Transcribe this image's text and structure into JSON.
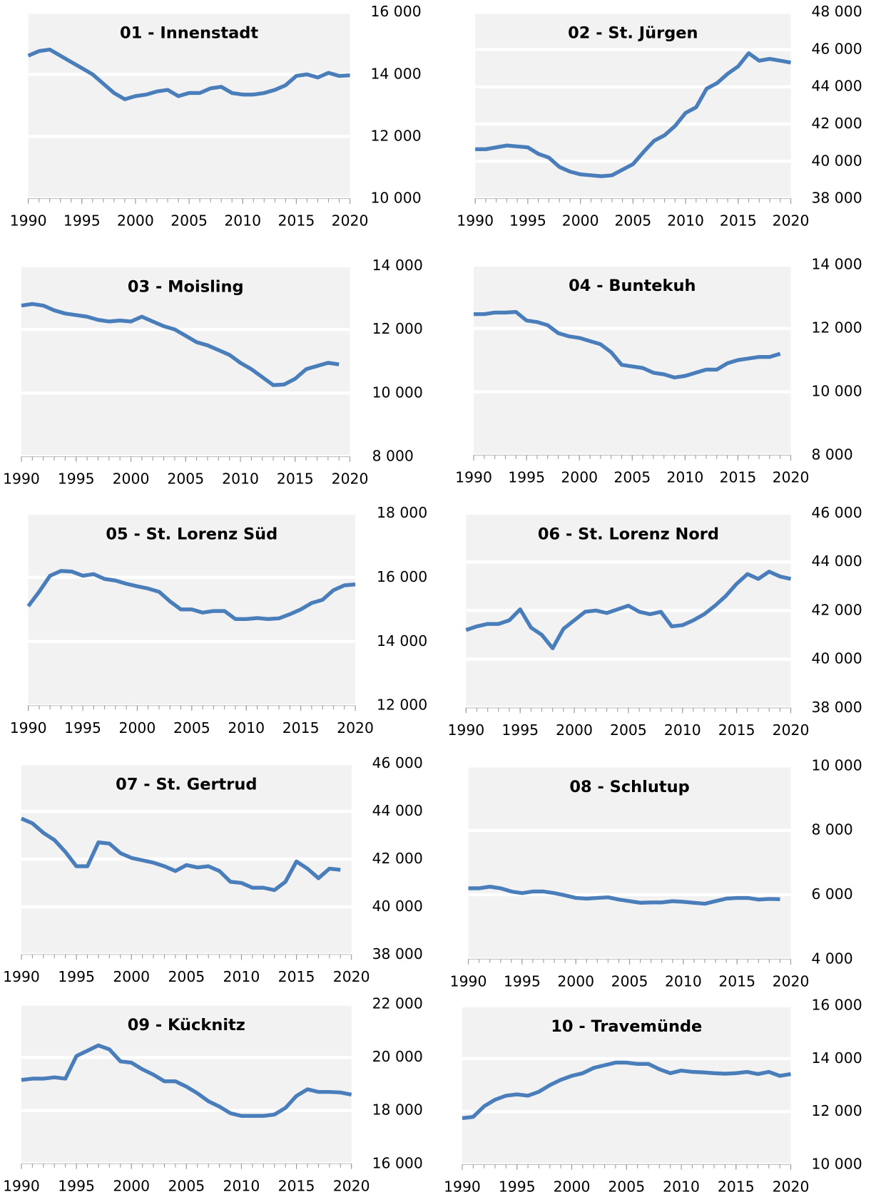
{
  "chart_data": [
    {
      "type": "line",
      "title": "01 - Innenstadt",
      "color": "#4a7ebb",
      "x": [
        1990,
        1991,
        1992,
        1993,
        1994,
        1995,
        1996,
        1997,
        1998,
        1999,
        2000,
        2001,
        2002,
        2003,
        2004,
        2005,
        2006,
        2007,
        2008,
        2009,
        2010,
        2011,
        2012,
        2013,
        2014,
        2015,
        2016,
        2017,
        2018,
        2019,
        2020
      ],
      "values": [
        14600,
        14750,
        14800,
        14600,
        14400,
        14200,
        14000,
        13700,
        13400,
        13200,
        13300,
        13350,
        13450,
        13500,
        13300,
        13400,
        13400,
        13550,
        13600,
        13400,
        13350,
        13350,
        13400,
        13500,
        13650,
        13950,
        14000,
        13900,
        14050,
        13950,
        13970
      ],
      "xlim": [
        1990,
        2020
      ],
      "xticks": [
        1990,
        1995,
        2000,
        2005,
        2010,
        2015,
        2020
      ],
      "ylim": [
        10000,
        16000
      ],
      "yticks": [
        {
          "value": 10000,
          "label": "10 000"
        },
        {
          "value": 12000,
          "label": "12 000"
        },
        {
          "value": 14000,
          "label": "14 000"
        },
        {
          "value": 16000,
          "label": "16 000"
        }
      ],
      "grid": true
    },
    {
      "type": "line",
      "title": "02 - St. Jürgen",
      "color": "#4a7ebb",
      "x": [
        1990,
        1991,
        1992,
        1993,
        1994,
        1995,
        1996,
        1997,
        1998,
        1999,
        2000,
        2001,
        2002,
        2003,
        2004,
        2005,
        2006,
        2007,
        2008,
        2009,
        2010,
        2011,
        2012,
        2013,
        2014,
        2015,
        2016,
        2017,
        2018,
        2019,
        2020
      ],
      "values": [
        40650,
        40650,
        40750,
        40850,
        40800,
        40750,
        40400,
        40200,
        39700,
        39450,
        39300,
        39250,
        39200,
        39250,
        39550,
        39850,
        40500,
        41100,
        41400,
        41900,
        42600,
        42900,
        43900,
        44200,
        44700,
        45100,
        45800,
        45400,
        45500,
        45400,
        45300
      ],
      "xlim": [
        1990,
        2020
      ],
      "xticks": [
        1990,
        1995,
        2000,
        2005,
        2010,
        2015,
        2020
      ],
      "ylim": [
        38000,
        48000
      ],
      "yticks": [
        {
          "value": 38000,
          "label": "38 000"
        },
        {
          "value": 40000,
          "label": "40 000"
        },
        {
          "value": 42000,
          "label": "42 000"
        },
        {
          "value": 44000,
          "label": "44 000"
        },
        {
          "value": 46000,
          "label": "46 000"
        },
        {
          "value": 48000,
          "label": "48 000"
        }
      ],
      "grid": true
    },
    {
      "type": "line",
      "title": "03 - Moisling",
      "color": "#4a7ebb",
      "x": [
        1990,
        1991,
        1992,
        1993,
        1994,
        1995,
        1996,
        1997,
        1998,
        1999,
        2000,
        2001,
        2002,
        2003,
        2004,
        2005,
        2006,
        2007,
        2008,
        2009,
        2010,
        2011,
        2012,
        2013,
        2014,
        2015,
        2016,
        2017,
        2018,
        2019
      ],
      "values": [
        12750,
        12800,
        12750,
        12600,
        12500,
        12450,
        12400,
        12300,
        12250,
        12280,
        12250,
        12400,
        12250,
        12100,
        12000,
        11800,
        11600,
        11500,
        11350,
        11200,
        10950,
        10750,
        10500,
        10250,
        10270,
        10450,
        10750,
        10850,
        10950,
        10900
      ],
      "xlim": [
        1990,
        2020
      ],
      "xticks": [
        1990,
        1995,
        2000,
        2005,
        2010,
        2015,
        2020
      ],
      "ylim": [
        8000,
        14000
      ],
      "yticks": [
        {
          "value": 8000,
          "label": "8 000"
        },
        {
          "value": 10000,
          "label": "10 000"
        },
        {
          "value": 12000,
          "label": "12 000"
        },
        {
          "value": 14000,
          "label": "14 000"
        }
      ],
      "grid": true
    },
    {
      "type": "line",
      "title": "04 - Buntekuh",
      "color": "#4a7ebb",
      "x": [
        1990,
        1991,
        1992,
        1993,
        1994,
        1995,
        1996,
        1997,
        1998,
        1999,
        2000,
        2001,
        2002,
        2003,
        2004,
        2005,
        2006,
        2007,
        2008,
        2009,
        2010,
        2011,
        2012,
        2013,
        2014,
        2015,
        2016,
        2017,
        2018,
        2019
      ],
      "values": [
        12450,
        12450,
        12500,
        12500,
        12520,
        12250,
        12200,
        12100,
        11850,
        11750,
        11700,
        11600,
        11500,
        11250,
        10850,
        10800,
        10750,
        10600,
        10550,
        10450,
        10500,
        10600,
        10700,
        10700,
        10900,
        11000,
        11050,
        11100,
        11100,
        11200
      ],
      "xlim": [
        1990,
        2020
      ],
      "xticks": [
        1990,
        1995,
        2000,
        2005,
        2010,
        2015,
        2020
      ],
      "ylim": [
        8000,
        14000
      ],
      "yticks": [
        {
          "value": 8000,
          "label": "8 000"
        },
        {
          "value": 10000,
          "label": "10 000"
        },
        {
          "value": 12000,
          "label": "12 000"
        },
        {
          "value": 14000,
          "label": "14 000"
        }
      ],
      "grid": true
    },
    {
      "type": "line",
      "title": "05 - St. Lorenz Süd",
      "color": "#4a7ebb",
      "x": [
        1990,
        1991,
        1992,
        1993,
        1994,
        1995,
        1996,
        1997,
        1998,
        1999,
        2000,
        2001,
        2002,
        2003,
        2004,
        2005,
        2006,
        2007,
        2008,
        2009,
        2010,
        2011,
        2012,
        2013,
        2014,
        2015,
        2016,
        2017,
        2018,
        2019,
        2020
      ],
      "values": [
        15100,
        15550,
        16050,
        16200,
        16180,
        16050,
        16100,
        15950,
        15900,
        15800,
        15720,
        15650,
        15550,
        15250,
        15000,
        15000,
        14900,
        14950,
        14950,
        14700,
        14700,
        14730,
        14700,
        14720,
        14850,
        15000,
        15200,
        15300,
        15600,
        15750,
        15780
      ],
      "xlim": [
        1990,
        2020
      ],
      "xticks": [
        1990,
        1995,
        2000,
        2005,
        2010,
        2015,
        2020
      ],
      "ylim": [
        12000,
        18000
      ],
      "yticks": [
        {
          "value": 12000,
          "label": "12 000"
        },
        {
          "value": 14000,
          "label": "14 000"
        },
        {
          "value": 16000,
          "label": "16 000"
        },
        {
          "value": 18000,
          "label": "18 000"
        }
      ],
      "grid": true
    },
    {
      "type": "line",
      "title": "06 - St. Lorenz Nord",
      "color": "#4a7ebb",
      "x": [
        1990,
        1991,
        1992,
        1993,
        1994,
        1995,
        1996,
        1997,
        1998,
        1999,
        2000,
        2001,
        2002,
        2003,
        2004,
        2005,
        2006,
        2007,
        2008,
        2009,
        2010,
        2011,
        2012,
        2013,
        2014,
        2015,
        2016,
        2017,
        2018,
        2019,
        2020
      ],
      "values": [
        41200,
        41350,
        41450,
        41450,
        41600,
        42050,
        41300,
        41000,
        40450,
        41250,
        41600,
        41950,
        42000,
        41900,
        42050,
        42200,
        41950,
        41850,
        41950,
        41350,
        41400,
        41600,
        41850,
        42200,
        42600,
        43100,
        43500,
        43300,
        43600,
        43400,
        43300
      ],
      "xlim": [
        1990,
        2020
      ],
      "xticks": [
        1990,
        1995,
        2000,
        2005,
        2010,
        2015,
        2020
      ],
      "ylim": [
        38000,
        46000
      ],
      "yticks": [
        {
          "value": 38000,
          "label": "38 000"
        },
        {
          "value": 40000,
          "label": "40 000"
        },
        {
          "value": 42000,
          "label": "42 000"
        },
        {
          "value": 44000,
          "label": "44 000"
        },
        {
          "value": 46000,
          "label": "46 000"
        }
      ],
      "grid": true
    },
    {
      "type": "line",
      "title": "07 - St. Gertrud",
      "color": "#4a7ebb",
      "x": [
        1990,
        1991,
        1992,
        1993,
        1994,
        1995,
        1996,
        1997,
        1998,
        1999,
        2000,
        2001,
        2002,
        2003,
        2004,
        2005,
        2006,
        2007,
        2008,
        2009,
        2010,
        2011,
        2012,
        2013,
        2014,
        2015,
        2016,
        2017,
        2018,
        2019
      ],
      "values": [
        43700,
        43500,
        43100,
        42800,
        42300,
        41700,
        41700,
        42700,
        42650,
        42250,
        42050,
        41950,
        41850,
        41700,
        41500,
        41750,
        41650,
        41700,
        41500,
        41050,
        41000,
        40800,
        40800,
        40700,
        41050,
        41900,
        41600,
        41200,
        41600,
        41550
      ],
      "xlim": [
        1990,
        2020
      ],
      "xticks": [
        1990,
        1995,
        2000,
        2005,
        2010,
        2015,
        2020
      ],
      "ylim": [
        38000,
        46000
      ],
      "yticks": [
        {
          "value": 38000,
          "label": "38 000"
        },
        {
          "value": 40000,
          "label": "40 000"
        },
        {
          "value": 42000,
          "label": "42 000"
        },
        {
          "value": 44000,
          "label": "44 000"
        },
        {
          "value": 46000,
          "label": "46 000"
        }
      ],
      "grid": true
    },
    {
      "type": "line",
      "title": "08 - Schlutup",
      "color": "#4a7ebb",
      "x": [
        1990,
        1991,
        1992,
        1993,
        1994,
        1995,
        1996,
        1997,
        1998,
        1999,
        2000,
        2001,
        2002,
        2003,
        2004,
        2005,
        2006,
        2007,
        2008,
        2009,
        2010,
        2011,
        2012,
        2013,
        2014,
        2015,
        2016,
        2017,
        2018,
        2019
      ],
      "values": [
        6200,
        6200,
        6250,
        6200,
        6100,
        6050,
        6100,
        6100,
        6050,
        5980,
        5900,
        5880,
        5900,
        5920,
        5850,
        5800,
        5750,
        5760,
        5760,
        5800,
        5780,
        5750,
        5720,
        5800,
        5880,
        5900,
        5900,
        5850,
        5870,
        5860
      ],
      "xlim": [
        1990,
        2020
      ],
      "xticks": [
        1990,
        1995,
        2000,
        2005,
        2010,
        2015,
        2020
      ],
      "ylim": [
        4000,
        10000
      ],
      "yticks": [
        {
          "value": 4000,
          "label": "4 000"
        },
        {
          "value": 6000,
          "label": "6 000"
        },
        {
          "value": 8000,
          "label": "8 000"
        },
        {
          "value": 10000,
          "label": "10 000"
        }
      ],
      "grid": true
    },
    {
      "type": "line",
      "title": "09 - Kücknitz",
      "color": "#4a7ebb",
      "x": [
        1990,
        1991,
        1992,
        1993,
        1994,
        1995,
        1996,
        1997,
        1998,
        1999,
        2000,
        2001,
        2002,
        2003,
        2004,
        2005,
        2006,
        2007,
        2008,
        2009,
        2010,
        2011,
        2012,
        2013,
        2014,
        2015,
        2016,
        2017,
        2018,
        2019,
        2020
      ],
      "values": [
        19150,
        19200,
        19200,
        19250,
        19200,
        20050,
        20250,
        20450,
        20300,
        19850,
        19800,
        19550,
        19350,
        19100,
        19100,
        18900,
        18650,
        18350,
        18150,
        17900,
        17800,
        17800,
        17800,
        17850,
        18100,
        18550,
        18800,
        18700,
        18700,
        18680,
        18600
      ],
      "xlim": [
        1990,
        2020
      ],
      "xticks": [
        1990,
        1995,
        2000,
        2005,
        2010,
        2015,
        2020
      ],
      "ylim": [
        16000,
        22000
      ],
      "yticks": [
        {
          "value": 16000,
          "label": "16 000"
        },
        {
          "value": 18000,
          "label": "18 000"
        },
        {
          "value": 20000,
          "label": "20 000"
        },
        {
          "value": 22000,
          "label": "22 000"
        }
      ],
      "grid": true
    },
    {
      "type": "line",
      "title": "10 - Travemünde",
      "color": "#4a7ebb",
      "x": [
        1990,
        1991,
        1992,
        1993,
        1994,
        1995,
        1996,
        1997,
        1998,
        1999,
        2000,
        2001,
        2002,
        2003,
        2004,
        2005,
        2006,
        2007,
        2008,
        2009,
        2010,
        2011,
        2012,
        2013,
        2014,
        2015,
        2016,
        2017,
        2018,
        2019,
        2020
      ],
      "values": [
        11750,
        11800,
        12200,
        12450,
        12600,
        12650,
        12600,
        12750,
        13000,
        13200,
        13350,
        13450,
        13650,
        13750,
        13850,
        13850,
        13800,
        13800,
        13600,
        13450,
        13550,
        13500,
        13480,
        13450,
        13430,
        13450,
        13500,
        13420,
        13500,
        13350,
        13420
      ],
      "xlim": [
        1990,
        2020
      ],
      "xticks": [
        1990,
        1995,
        2000,
        2005,
        2010,
        2015,
        2020
      ],
      "ylim": [
        10000,
        16000
      ],
      "yticks": [
        {
          "value": 10000,
          "label": "10 000"
        },
        {
          "value": 12000,
          "label": "12 000"
        },
        {
          "value": 14000,
          "label": "14 000"
        },
        {
          "value": 16000,
          "label": "16 000"
        }
      ],
      "grid": true
    }
  ]
}
